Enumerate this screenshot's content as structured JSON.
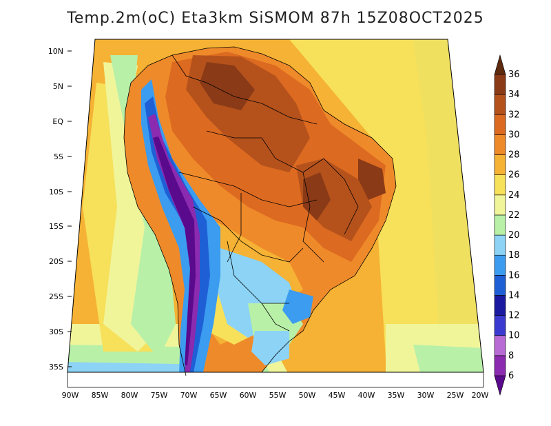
{
  "title": "Temp.2m(oC) Eta3km SiSMOM 87h 15Z08OCT2025",
  "lat_labels": [
    "10N",
    "5N",
    "EQ",
    "5S",
    "10S",
    "15S",
    "20S",
    "25S",
    "30S",
    "35S"
  ],
  "lon_labels": [
    "90W",
    "85W",
    "80W",
    "75W",
    "70W",
    "65W",
    "60W",
    "55W",
    "50W",
    "45W",
    "40W",
    "35W",
    "30W",
    "25W",
    "20W"
  ],
  "colorbar": {
    "levels": [
      "6",
      "8",
      "10",
      "12",
      "14",
      "16",
      "18",
      "20",
      "22",
      "24",
      "26",
      "28",
      "30",
      "32",
      "34",
      "36"
    ],
    "colors": [
      "#5a0a8c",
      "#8a2bb0",
      "#b86bd4",
      "#3a3ad0",
      "#1a1aa0",
      "#1f5fd6",
      "#3b9cf0",
      "#8cd3f5",
      "#b8f0a8",
      "#f0f59a",
      "#f7e05a",
      "#f5b234",
      "#ef8a2a",
      "#dc6a20",
      "#b5521c",
      "#8a3a16",
      "#5e2a10"
    ]
  }
}
